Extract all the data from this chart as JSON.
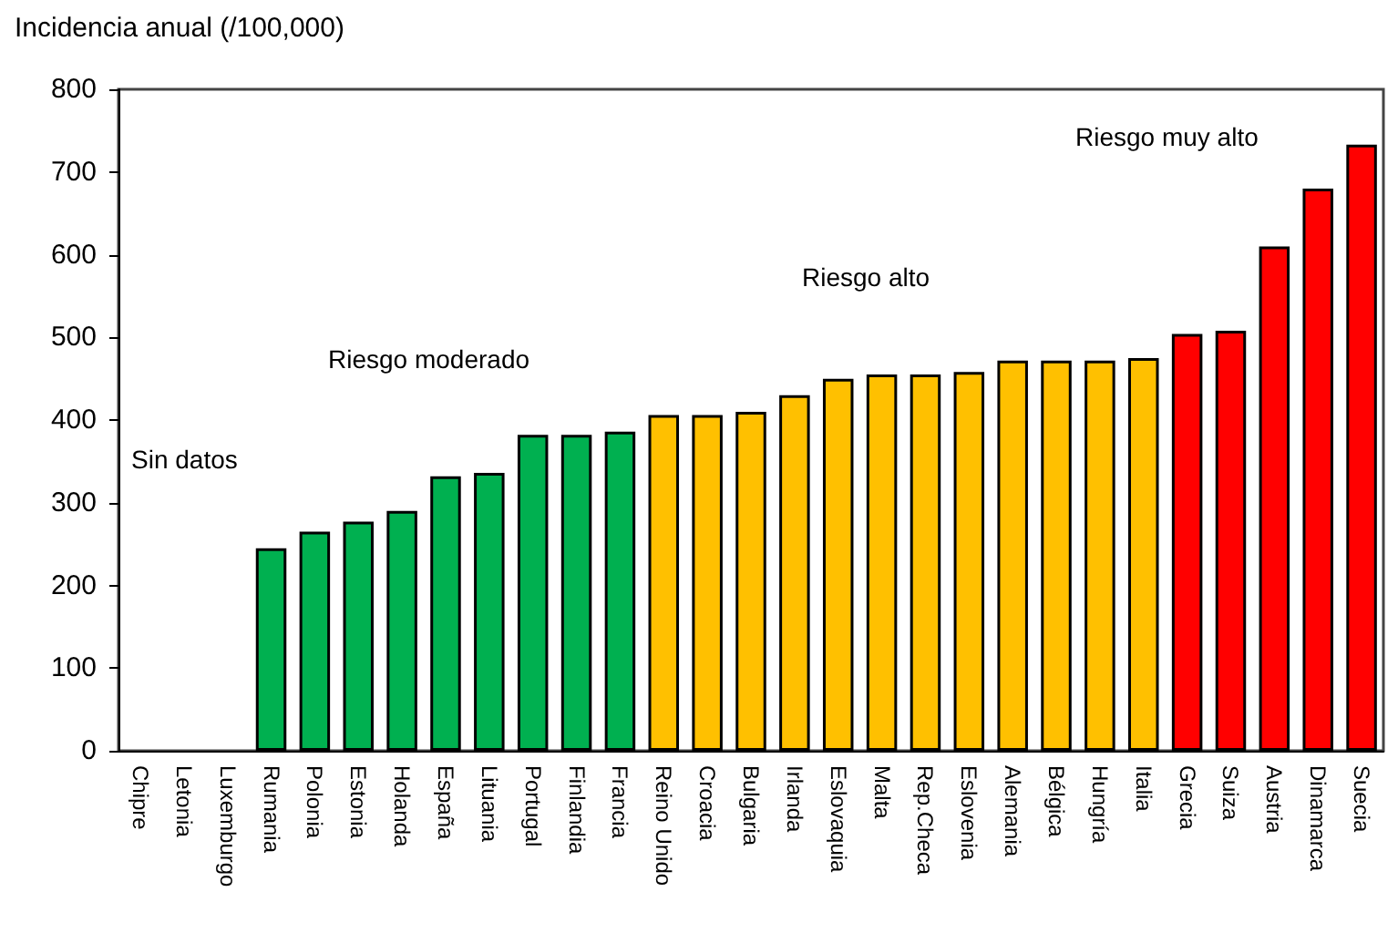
{
  "chart_data": {
    "type": "bar",
    "ylabel": "Incidencia anual (/100,000)",
    "categories": [
      "Chipre",
      "Letonia",
      "Luxemburgo",
      "Rumania",
      "Polonia",
      "Estonia",
      "Holanda",
      "España",
      "Lituania",
      "Portugal",
      "Finlandia",
      "Francia",
      "Reino Unido",
      "Croacia",
      "Bulgaria",
      "Irlanda",
      "Eslovaquia",
      "Malta",
      "Rep.Checa",
      "Eslovenia",
      "Alemania",
      "Bélgica",
      "Hungría",
      "Italia",
      "Grecia",
      "Suiza",
      "Austria",
      "Dinamarca",
      "Suecia"
    ],
    "values": [
      null,
      null,
      null,
      245,
      265,
      277,
      290,
      332,
      336,
      382,
      382,
      386,
      406,
      406,
      410,
      430,
      450,
      455,
      455,
      458,
      472,
      472,
      472,
      475,
      504,
      508,
      610,
      680,
      733
    ],
    "colors": [
      "#00b050",
      "#00b050",
      "#00b050",
      "#00b050",
      "#00b050",
      "#00b050",
      "#00b050",
      "#00b050",
      "#00b050",
      "#00b050",
      "#00b050",
      "#00b050",
      "#ffc000",
      "#ffc000",
      "#ffc000",
      "#ffc000",
      "#ffc000",
      "#ffc000",
      "#ffc000",
      "#ffc000",
      "#ffc000",
      "#ffc000",
      "#ffc000",
      "#ffc000",
      "#ff0000",
      "#ff0000",
      "#ff0000",
      "#ff0000",
      "#ff0000"
    ],
    "ylim": [
      0,
      800
    ],
    "yticks": [
      0,
      100,
      200,
      300,
      400,
      500,
      600,
      700,
      800
    ],
    "grid": false,
    "annotations": [
      "Sin datos",
      "Riesgo moderado",
      "Riesgo alto",
      "Riesgo muy alto"
    ]
  }
}
